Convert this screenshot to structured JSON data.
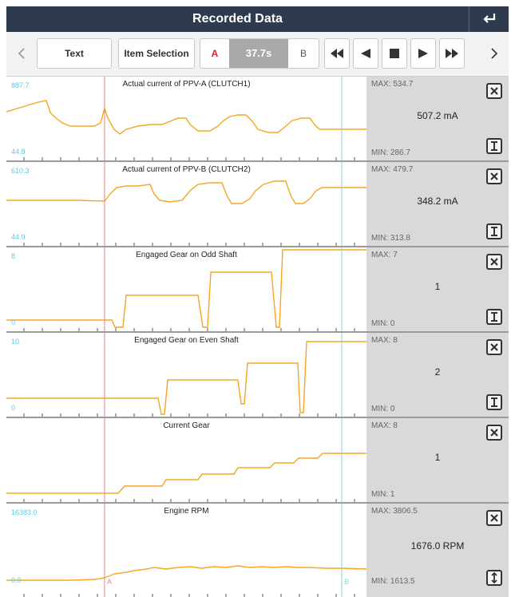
{
  "header": {
    "title": "Recorded Data"
  },
  "toolbar": {
    "text_label": "Text",
    "item_selection_label": "Item Selection",
    "marker_a": "A",
    "marker_b": "B",
    "time": "37.7s"
  },
  "rows": [
    {
      "title": "Actual current of PPV-A (CLUTCH1)",
      "axis_max": "887.7",
      "axis_min": "44.8",
      "max": "MAX: 534.7",
      "value": "507.2 mA",
      "min": "MIN: 286.7",
      "button": "close-icon",
      "button2": "scale-icon"
    },
    {
      "title": "Actual current of PPV-B (CLUTCH2)",
      "axis_max": "610.3",
      "axis_min": "44.9",
      "max": "MAX: 479.7",
      "value": "348.2 mA",
      "min": "MIN: 313.8",
      "button": "close-icon",
      "button2": "scale-icon"
    },
    {
      "title": "Engaged Gear on Odd Shaft",
      "axis_max": "8",
      "axis_min": "0",
      "max": "MAX: 7",
      "value": "1",
      "min": "MIN: 0",
      "button": "close-icon",
      "button2": "scale-icon"
    },
    {
      "title": "Engaged Gear on Even Shaft",
      "axis_max": "10",
      "axis_min": "0",
      "max": "MAX: 8",
      "value": "2",
      "min": "MIN: 0",
      "button": "close-icon",
      "button2": "scale-icon"
    },
    {
      "title": "Current Gear",
      "axis_max": "",
      "axis_min": "",
      "max": "MAX: 8",
      "value": "1",
      "min": "MIN: 1",
      "button": "close-icon",
      "button2": ""
    },
    {
      "title": "Engine RPM",
      "axis_max": "16383.0",
      "axis_min": "0.0",
      "max": "MAX: 3806.5",
      "value": "1676.0 RPM",
      "min": "MIN: 1613.5",
      "button": "close-icon",
      "button2": "expand-vertical-icon"
    }
  ],
  "colors": {
    "title_bar": "#2e3b4e",
    "trace": "#f5a623",
    "cursor_a": "#f08080",
    "cursor_b": "#7fdada",
    "axis_label": "#55ccee",
    "side_panel": "#d9d9d9"
  }
}
